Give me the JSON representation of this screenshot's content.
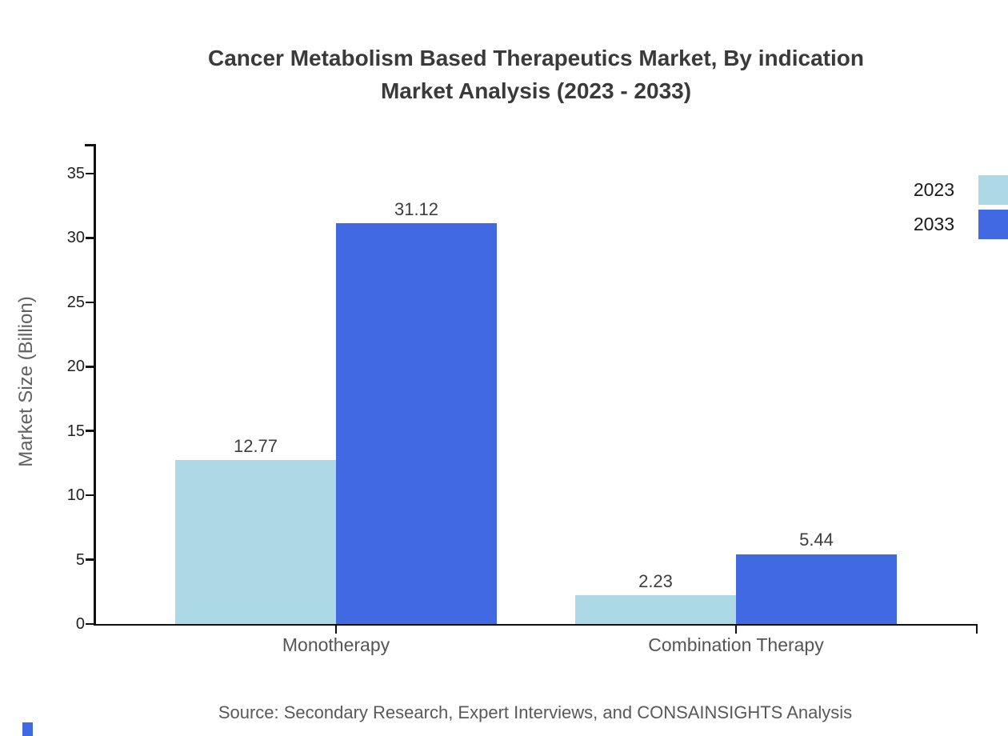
{
  "title": {
    "line1": "Cancer Metabolism Based Therapeutics Market, By indication",
    "line2": "Market Analysis (2023 - 2033)"
  },
  "source_note": "Source: Secondary Research, Expert Interviews, and CONSAINSIGHTS Analysis",
  "chart_data": {
    "type": "bar",
    "title": "Cancer Metabolism Based Therapeutics Market, By indication Market Analysis (2023 - 2033)",
    "categories": [
      "Monotherapy",
      "Combination Therapy"
    ],
    "series": [
      {
        "name": "2023",
        "color": "#ADD8E6",
        "values": [
          12.77,
          2.23
        ]
      },
      {
        "name": "2033",
        "color": "#4169E1",
        "values": [
          31.12,
          5.44
        ]
      }
    ],
    "value_labels": [
      "12.77",
      "31.12",
      "2.23",
      "5.44"
    ],
    "xlabel": "",
    "ylabel": "Market Size (Billion)",
    "ylim": [
      0,
      37.3
    ],
    "yticks": [
      0,
      5,
      10,
      15,
      20,
      25,
      30,
      35
    ],
    "grid": false,
    "legend_position": "top-right",
    "legend_entries": [
      "2023",
      "2033"
    ]
  },
  "colors": {
    "axis": "#111111",
    "series_2023": "#ADD8E6",
    "series_2033": "#4169E1",
    "corner_square": "#4169E1"
  }
}
